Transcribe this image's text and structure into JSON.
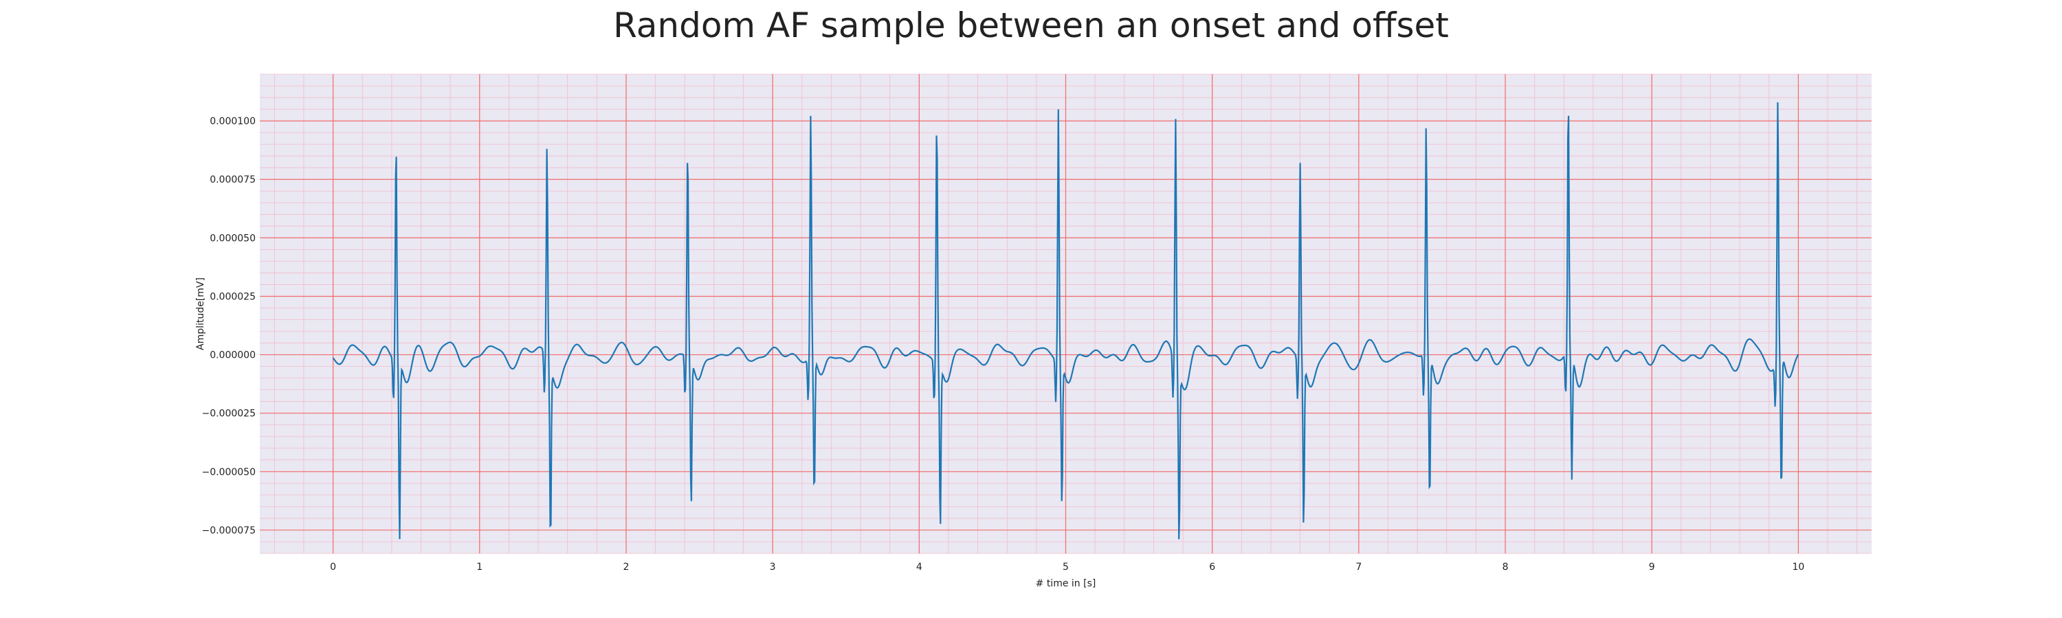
{
  "chart_data": {
    "type": "line",
    "title": "Random AF sample between an onset and offset",
    "xlabel": "# time in [s]",
    "ylabel": "Amplitude[mV]",
    "xlim": [
      -0.5,
      10.5
    ],
    "ylim": [
      -8.5e-05,
      0.00012
    ],
    "x_ticks": [
      0,
      1,
      2,
      3,
      4,
      5,
      6,
      7,
      8,
      9,
      10
    ],
    "x_tick_labels": [
      "0",
      "1",
      "2",
      "3",
      "4",
      "5",
      "6",
      "7",
      "8",
      "9",
      "10"
    ],
    "y_ticks": [
      -7.5e-05,
      -5e-05,
      -2.5e-05,
      0,
      2.5e-05,
      5e-05,
      7.5e-05,
      0.0001
    ],
    "y_tick_labels": [
      "−0.000075",
      "−0.000050",
      "−0.000025",
      "0.000000",
      "0.000025",
      "0.000050",
      "0.000075",
      "0.000100"
    ],
    "grid": true,
    "minor_grid": true,
    "background_color": "#eae8f2",
    "major_grid_color": "#f26b6b",
    "minor_grid_color": "#f2bccd",
    "line_color": "#1f77b4",
    "series": [
      {
        "beats": [
          {
            "t": 0.43,
            "peak": 9.4e-05,
            "trough": -7.6e-05
          },
          {
            "t": 1.46,
            "peak": 9.1e-05,
            "trough": -7.6e-05
          },
          {
            "t": 2.42,
            "peak": 8.9e-05,
            "trough": -6.3e-05
          },
          {
            "t": 3.26,
            "peak": 0.000105,
            "trough": -6e-05
          },
          {
            "t": 4.12,
            "peak": 0.000105,
            "trough": -7e-05
          },
          {
            "t": 4.95,
            "peak": 0.000108,
            "trough": -6e-05
          },
          {
            "t": 5.75,
            "peak": 0.000105,
            "trough": -7.3e-05
          },
          {
            "t": 6.6,
            "peak": 8.4e-05,
            "trough": -7e-05
          },
          {
            "t": 7.46,
            "peak": 9.8e-05,
            "trough": -6.3e-05
          },
          {
            "t": 8.43,
            "peak": 0.000108,
            "trough": -5.4e-05
          },
          {
            "t": 9.86,
            "peak": 0.000112,
            "trough": -5.9e-05
          }
        ],
        "baseline_fluctuation_amplitude": 1e-05,
        "x_range": [
          0,
          10
        ]
      }
    ]
  }
}
